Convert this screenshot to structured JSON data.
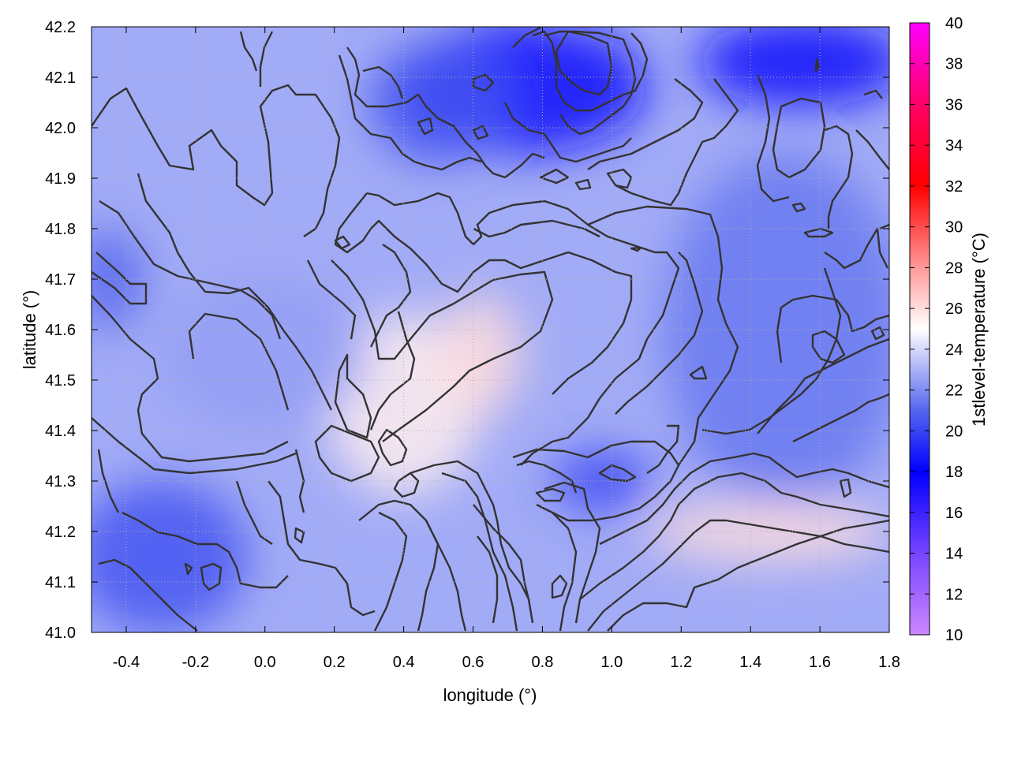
{
  "chart_data": {
    "type": "heatmap",
    "title": "",
    "xlabel": "longitude (°)",
    "ylabel": "latitude (°)",
    "colorbar_label": "1stlevel-temperature (°C)",
    "xlim": [
      -0.5,
      1.8
    ],
    "ylim": [
      41.0,
      42.2
    ],
    "clim": [
      10,
      40
    ],
    "x_ticks": [
      "-0.4",
      "-0.2",
      "0.0",
      "0.2",
      "0.4",
      "0.6",
      "0.8",
      "1.0",
      "1.2",
      "1.4",
      "1.6",
      "1.8"
    ],
    "y_ticks": [
      "41.0",
      "41.1",
      "41.2",
      "41.3",
      "41.4",
      "41.5",
      "41.6",
      "41.7",
      "41.8",
      "41.9",
      "42.0",
      "42.1",
      "42.2"
    ],
    "colorbar_ticks": [
      "10",
      "12",
      "14",
      "16",
      "18",
      "20",
      "22",
      "24",
      "26",
      "28",
      "30",
      "32",
      "34",
      "36",
      "38",
      "40"
    ],
    "grid": true,
    "contours": true,
    "colormap": [
      {
        "t": 10,
        "color": "#cc88ff"
      },
      {
        "t": 14,
        "color": "#7744ff"
      },
      {
        "t": 18,
        "color": "#0000ff"
      },
      {
        "t": 21,
        "color": "#5566ee"
      },
      {
        "t": 25,
        "color": "#ffffff"
      },
      {
        "t": 28,
        "color": "#ff9999"
      },
      {
        "t": 32,
        "color": "#ff0000"
      },
      {
        "t": 36,
        "color": "#ff0066"
      },
      {
        "t": 40,
        "color": "#ff00ff"
      }
    ],
    "regions": [
      {
        "x": 0.75,
        "y": 42.08,
        "rx": 0.35,
        "ry": 0.13,
        "t": 18.5
      },
      {
        "x": 1.55,
        "y": 42.13,
        "rx": 0.3,
        "ry": 0.09,
        "t": 18.5
      },
      {
        "x": 0.5,
        "y": 42.05,
        "rx": 0.2,
        "ry": 0.12,
        "t": 20.5
      },
      {
        "x": -0.3,
        "y": 41.15,
        "rx": 0.25,
        "ry": 0.15,
        "t": 20.5
      },
      {
        "x": 1.5,
        "y": 41.6,
        "rx": 0.35,
        "ry": 0.35,
        "t": 21.5
      },
      {
        "x": 0.97,
        "y": 41.3,
        "rx": 0.14,
        "ry": 0.06,
        "t": 20.0
      },
      {
        "x": 0.4,
        "y": 41.45,
        "rx": 0.22,
        "ry": 0.18,
        "t": 25.5
      },
      {
        "x": 0.62,
        "y": 41.55,
        "rx": 0.12,
        "ry": 0.12,
        "t": 26.0
      },
      {
        "x": 1.45,
        "y": 41.2,
        "rx": 0.35,
        "ry": 0.06,
        "t": 26.0
      },
      {
        "x": 0.0,
        "y": 41.55,
        "rx": 0.3,
        "ry": 0.15,
        "t": 22.5
      },
      {
        "x": -0.45,
        "y": 41.7,
        "rx": 0.1,
        "ry": 0.1,
        "t": 21.0
      }
    ],
    "background_t": 22.8
  }
}
